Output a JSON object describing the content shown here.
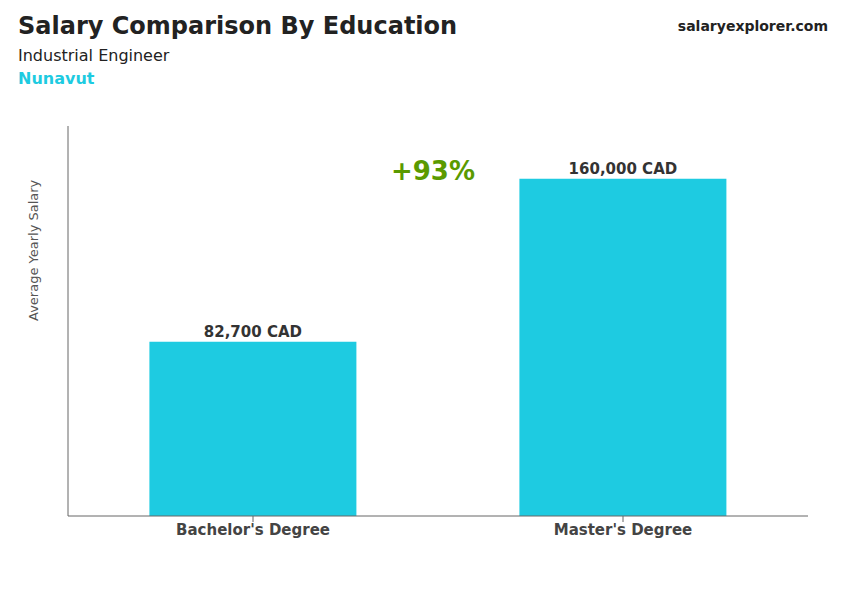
{
  "chart_data": {
    "type": "bar",
    "title": "Salary Comparison By Education",
    "subtitle": "Industrial Engineer",
    "annotations": [
      "Nunavut",
      "salaryexplorer.com",
      "+93%"
    ],
    "ylabel": "Average Yearly Salary",
    "categories": [
      "Bachelor's Degree",
      "Master's Degree"
    ],
    "values": [
      82700,
      160000
    ],
    "value_labels": [
      "82,700 CAD",
      "160,000 CAD"
    ],
    "data_labels": true,
    "color": "#1ECBE1",
    "ylim": [
      0,
      185000
    ],
    "tick_labels": "x",
    "grid": false
  }
}
